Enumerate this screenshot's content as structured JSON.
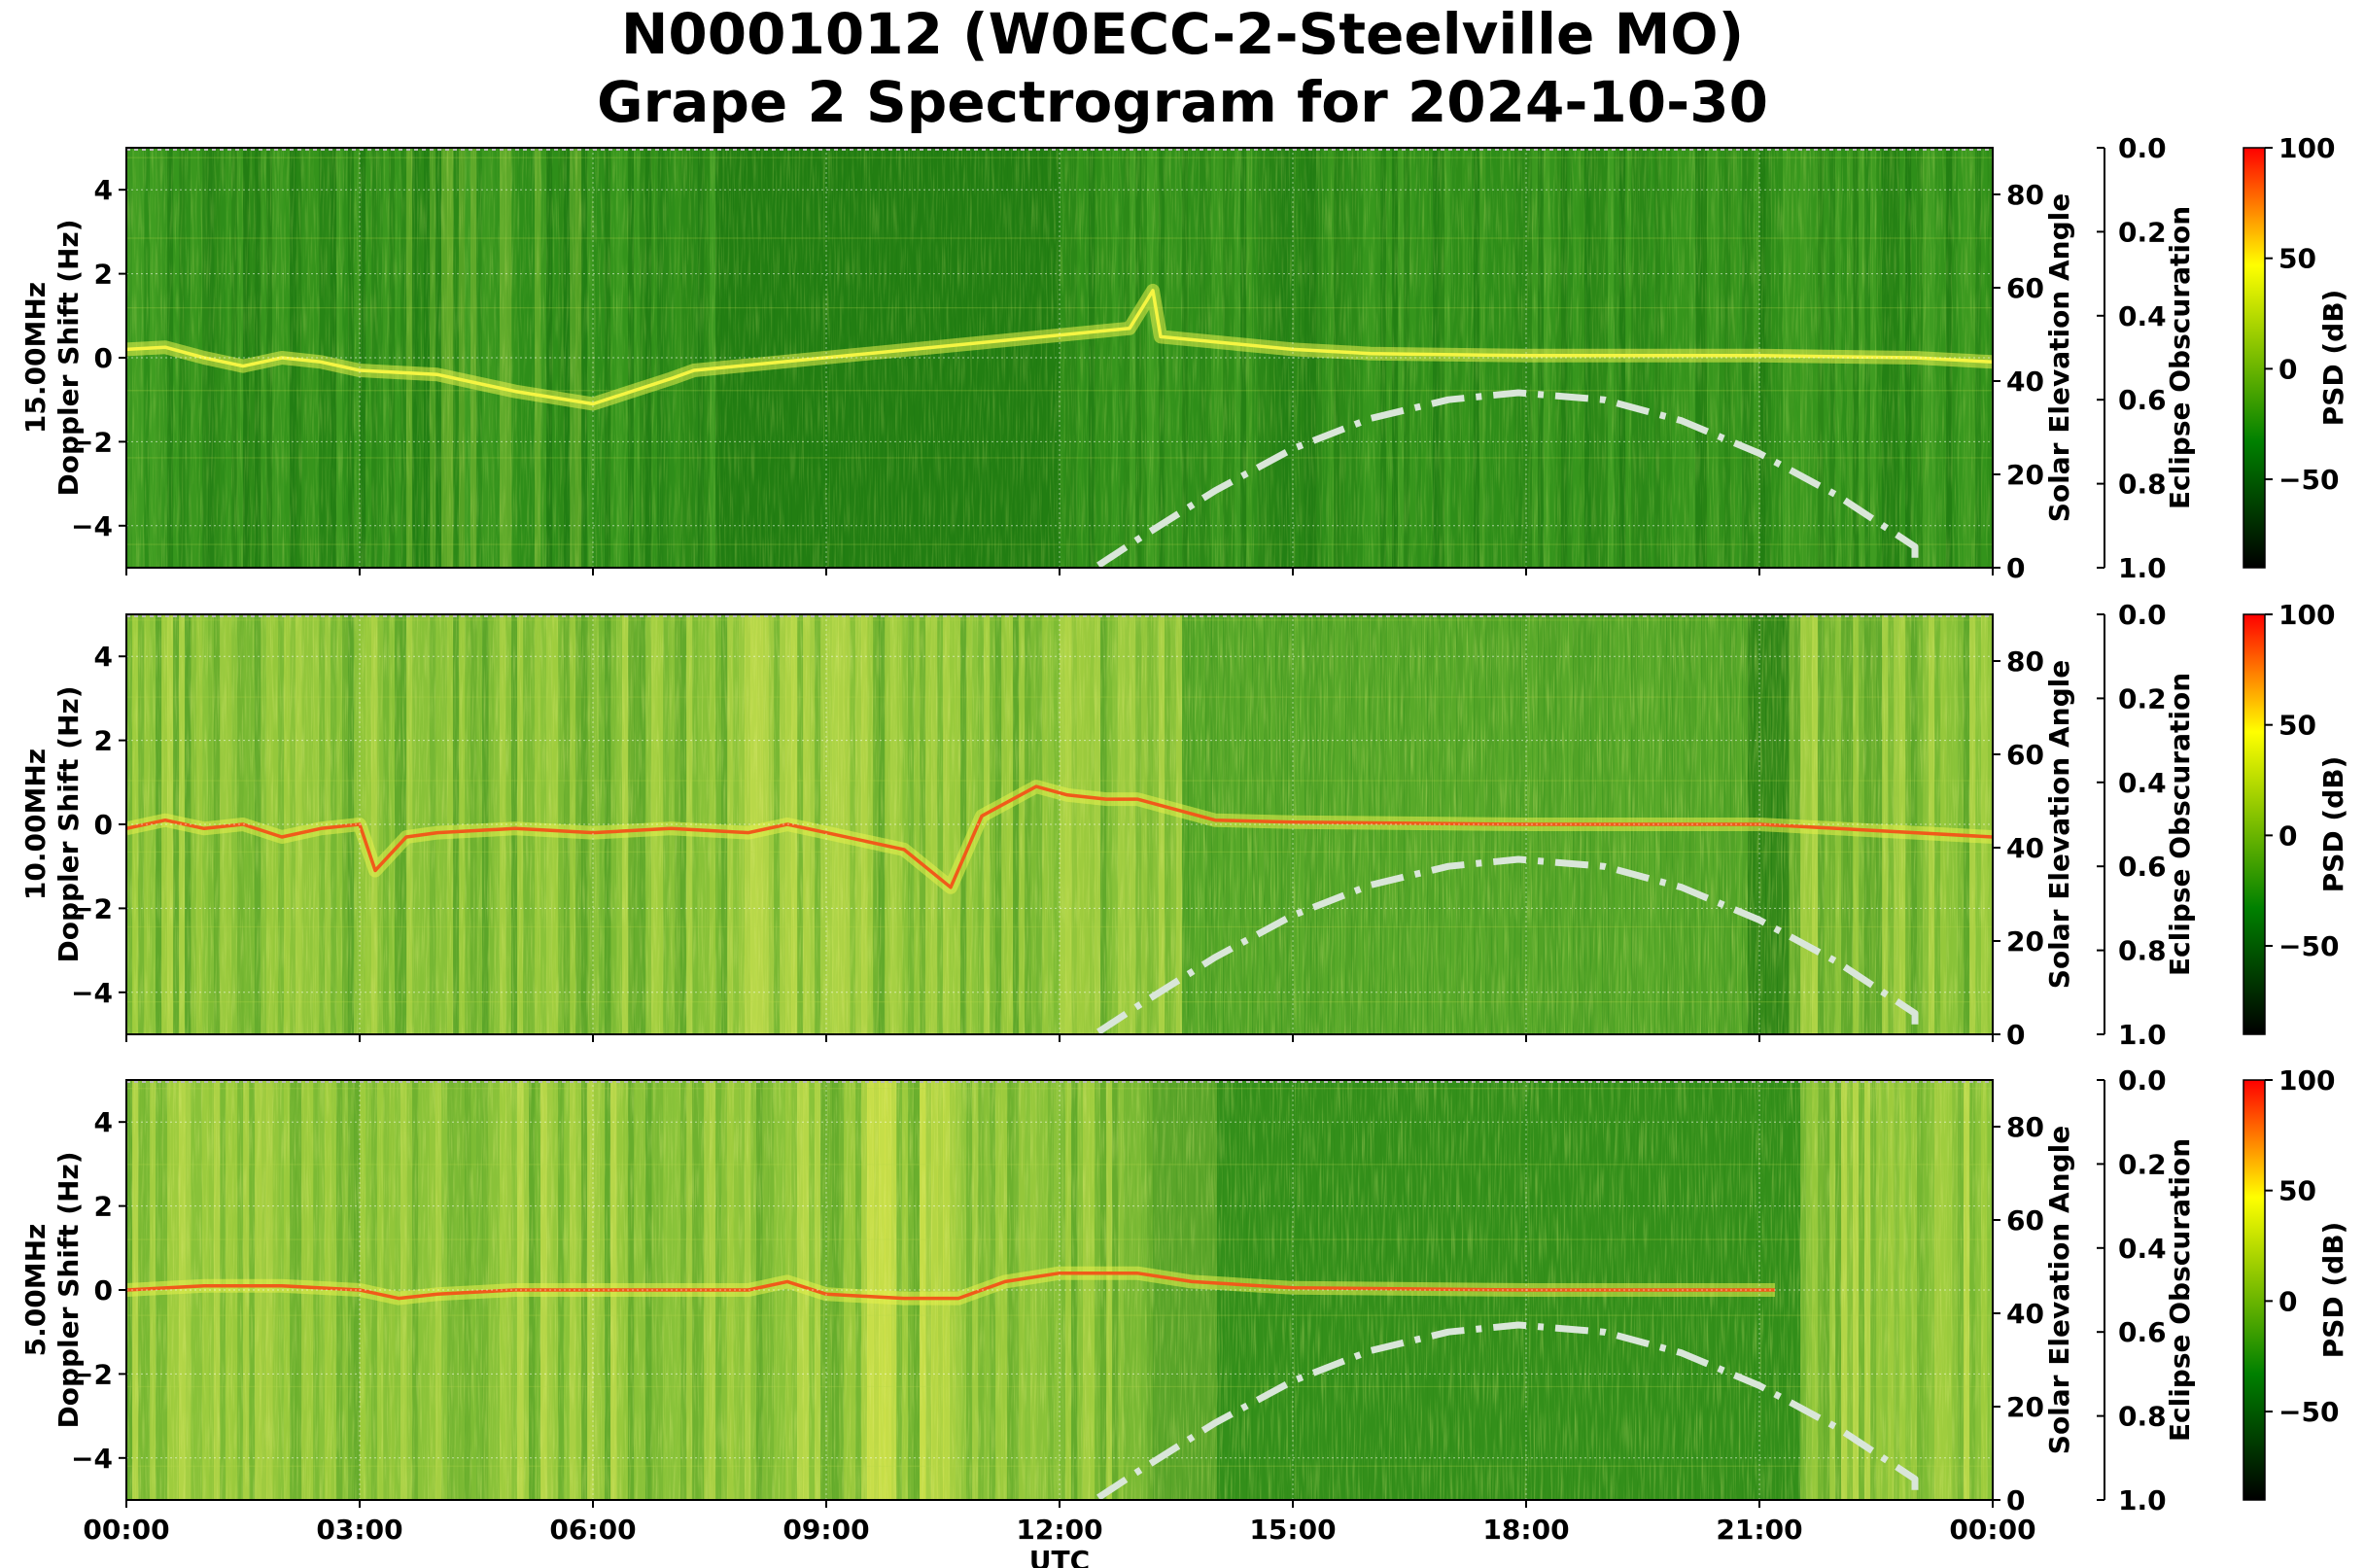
{
  "header": {
    "title_line1": "N0001012 (W0ECC-2-Steelville MO)",
    "title_line2": "Grape 2 Spectrogram for 2024-10-30"
  },
  "chart_data": {
    "type": "heatmap",
    "x_label": "UTC",
    "x_tick_labels": [
      "00:00",
      "03:00",
      "06:00",
      "09:00",
      "12:00",
      "15:00",
      "18:00",
      "21:00",
      "00:00"
    ],
    "x_range_hours": [
      0,
      24
    ],
    "colormap": [
      "#000000",
      "#008000",
      "#ffff00",
      "#ff0000"
    ],
    "panels": [
      {
        "frequency_label": "15.00MHz",
        "ylabel_doppler": "Doppler Shift (Hz)",
        "doppler_ylim": [
          -5,
          5
        ],
        "doppler_ticks": [
          "4",
          "2",
          "0",
          "−2",
          "−4"
        ],
        "ylabel_elevation": "Solar Elevation Angle",
        "elevation_ylim": [
          0,
          90
        ],
        "elevation_ticks": [
          "80",
          "60",
          "40",
          "20",
          "0"
        ],
        "ylabel_eclipse": "Eclipse Obscuration",
        "eclipse_ylim": [
          0,
          1
        ],
        "eclipse_ticks": [
          "0.0",
          "0.2",
          "0.4",
          "0.6",
          "0.8",
          "1.0"
        ],
        "colorbar_label": "PSD (dB)",
        "colorbar_range": [
          -90,
          100
        ],
        "colorbar_ticks": [
          "100",
          "50",
          "0",
          "−50"
        ],
        "activity": "quiet",
        "trace": [
          [
            0,
            0.2
          ],
          [
            0.5,
            0.25
          ],
          [
            1,
            0.0
          ],
          [
            1.5,
            -0.2
          ],
          [
            2,
            0.0
          ],
          [
            2.5,
            -0.1
          ],
          [
            3,
            -0.3
          ],
          [
            4,
            -0.4
          ],
          [
            5,
            -0.8
          ],
          [
            6,
            -1.1
          ],
          [
            7,
            -0.5
          ],
          [
            7.3,
            -0.3
          ],
          [
            12.9,
            0.7
          ],
          [
            13.2,
            1.6
          ],
          [
            13.3,
            0.5
          ],
          [
            15,
            0.2
          ],
          [
            16,
            0.1
          ],
          [
            18,
            0.05
          ],
          [
            21,
            0.05
          ],
          [
            23,
            0.0
          ],
          [
            24,
            -0.1
          ]
        ]
      },
      {
        "frequency_label": "10.00MHz",
        "ylabel_doppler": "Doppler Shift (Hz)",
        "doppler_ylim": [
          -5,
          5
        ],
        "doppler_ticks": [
          "4",
          "2",
          "0",
          "−2",
          "−4"
        ],
        "ylabel_elevation": "Solar Elevation Angle",
        "elevation_ylim": [
          0,
          90
        ],
        "elevation_ticks": [
          "80",
          "60",
          "40",
          "20",
          "0"
        ],
        "ylabel_eclipse": "Eclipse Obscuration",
        "eclipse_ylim": [
          0,
          1
        ],
        "eclipse_ticks": [
          "0.0",
          "0.2",
          "0.4",
          "0.6",
          "0.8",
          "1.0"
        ],
        "colorbar_label": "PSD (dB)",
        "colorbar_range": [
          -90,
          100
        ],
        "colorbar_ticks": [
          "100",
          "50",
          "0",
          "−50"
        ],
        "activity": "busy",
        "trace": [
          [
            0,
            -0.1
          ],
          [
            0.5,
            0.1
          ],
          [
            1,
            -0.1
          ],
          [
            1.5,
            0.0
          ],
          [
            2,
            -0.3
          ],
          [
            2.5,
            -0.1
          ],
          [
            3,
            0.0
          ],
          [
            3.2,
            -1.1
          ],
          [
            3.6,
            -0.3
          ],
          [
            4,
            -0.2
          ],
          [
            5,
            -0.1
          ],
          [
            6,
            -0.2
          ],
          [
            7,
            -0.1
          ],
          [
            8,
            -0.2
          ],
          [
            8.5,
            0.0
          ],
          [
            9,
            -0.2
          ],
          [
            10,
            -0.6
          ],
          [
            10.6,
            -1.5
          ],
          [
            11,
            0.2
          ],
          [
            11.7,
            0.9
          ],
          [
            12.1,
            0.7
          ],
          [
            12.6,
            0.6
          ],
          [
            13,
            0.6
          ],
          [
            14,
            0.1
          ],
          [
            15,
            0.05
          ],
          [
            18,
            0.0
          ],
          [
            21,
            0.0
          ],
          [
            22,
            -0.1
          ],
          [
            23,
            -0.2
          ],
          [
            24,
            -0.3
          ]
        ]
      },
      {
        "frequency_label": "5.00MHz",
        "ylabel_doppler": "Doppler Shift (Hz)",
        "doppler_ylim": [
          -5,
          5
        ],
        "doppler_ticks": [
          "4",
          "2",
          "0",
          "−2",
          "−4"
        ],
        "ylabel_elevation": "Solar Elevation Angle",
        "elevation_ylim": [
          0,
          90
        ],
        "elevation_ticks": [
          "80",
          "60",
          "40",
          "20",
          "0"
        ],
        "ylabel_eclipse": "Eclipse Obscuration",
        "eclipse_ylim": [
          0,
          1
        ],
        "eclipse_ticks": [
          "0.0",
          "0.2",
          "0.4",
          "0.6",
          "0.8",
          "1.0"
        ],
        "colorbar_label": "PSD (dB)",
        "colorbar_range": [
          -90,
          100
        ],
        "colorbar_ticks": [
          "100",
          "50",
          "0",
          "−50"
        ],
        "activity": "day-quiet",
        "trace": [
          [
            0,
            0.0
          ],
          [
            1,
            0.1
          ],
          [
            2,
            0.1
          ],
          [
            3,
            0.0
          ],
          [
            3.5,
            -0.2
          ],
          [
            4,
            -0.1
          ],
          [
            5,
            0.0
          ],
          [
            6,
            0.0
          ],
          [
            7,
            0.0
          ],
          [
            8,
            0.0
          ],
          [
            8.5,
            0.2
          ],
          [
            9,
            -0.1
          ],
          [
            10,
            -0.2
          ],
          [
            10.7,
            -0.2
          ],
          [
            11.3,
            0.2
          ],
          [
            12,
            0.4
          ],
          [
            13,
            0.4
          ],
          [
            13.7,
            0.2
          ],
          [
            15,
            0.05
          ],
          [
            18,
            0.0
          ],
          [
            21.2,
            0.0
          ]
        ]
      }
    ],
    "solar_elevation_series": {
      "name": "Solar Elevation",
      "line_style": "dash-dot",
      "color": "#d9e6d9",
      "x_hours": [
        12.5,
        13,
        14,
        15,
        16,
        17,
        17.9,
        19,
        20,
        21,
        22,
        23,
        23.0
      ],
      "values": [
        0.5,
        6,
        16.5,
        25.5,
        32,
        36,
        37.5,
        36,
        31.5,
        24.5,
        15.5,
        4.5,
        0.5
      ]
    }
  }
}
